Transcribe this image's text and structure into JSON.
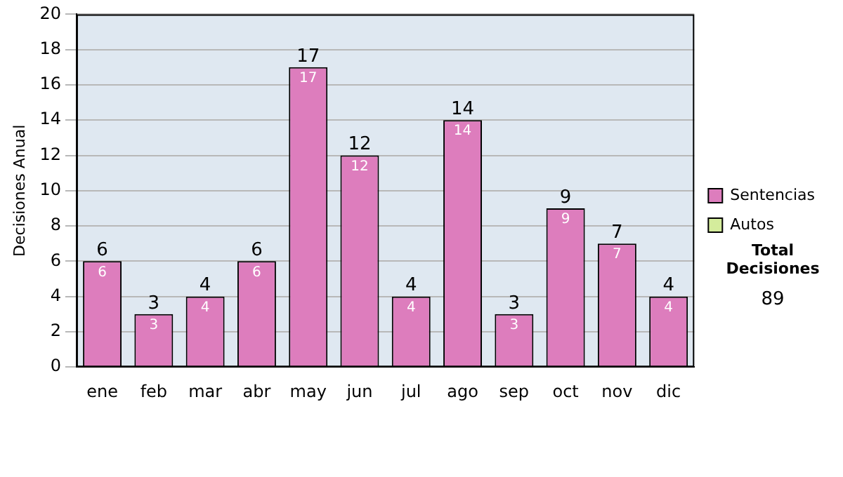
{
  "chart_data": {
    "type": "bar",
    "ylabel": "Decisiones Anual",
    "categories": [
      "ene",
      "feb",
      "mar",
      "abr",
      "may",
      "jun",
      "jul",
      "ago",
      "sep",
      "oct",
      "nov",
      "dic"
    ],
    "series": [
      {
        "name": "Sentencias",
        "color": "#dd7dbd",
        "values": [
          6,
          3,
          4,
          6,
          17,
          12,
          4,
          14,
          3,
          9,
          7,
          4
        ]
      },
      {
        "name": "Autos",
        "color": "#d4ec9c",
        "values": [
          null,
          null,
          null,
          null,
          null,
          null,
          null,
          null,
          null,
          null,
          null,
          null
        ]
      }
    ],
    "stacked": true,
    "totals": [
      "6",
      "3",
      "4",
      "6",
      "17",
      "12",
      "4",
      "14",
      "3",
      "9",
      "7",
      "4"
    ],
    "data_labels": true,
    "ylim": [
      0,
      20
    ],
    "yticks": [
      0,
      2,
      4,
      6,
      8,
      10,
      12,
      14,
      16,
      18,
      20
    ],
    "grid": "y",
    "legend": "right",
    "annotations": [
      "Total Decisiones",
      "89"
    ]
  }
}
